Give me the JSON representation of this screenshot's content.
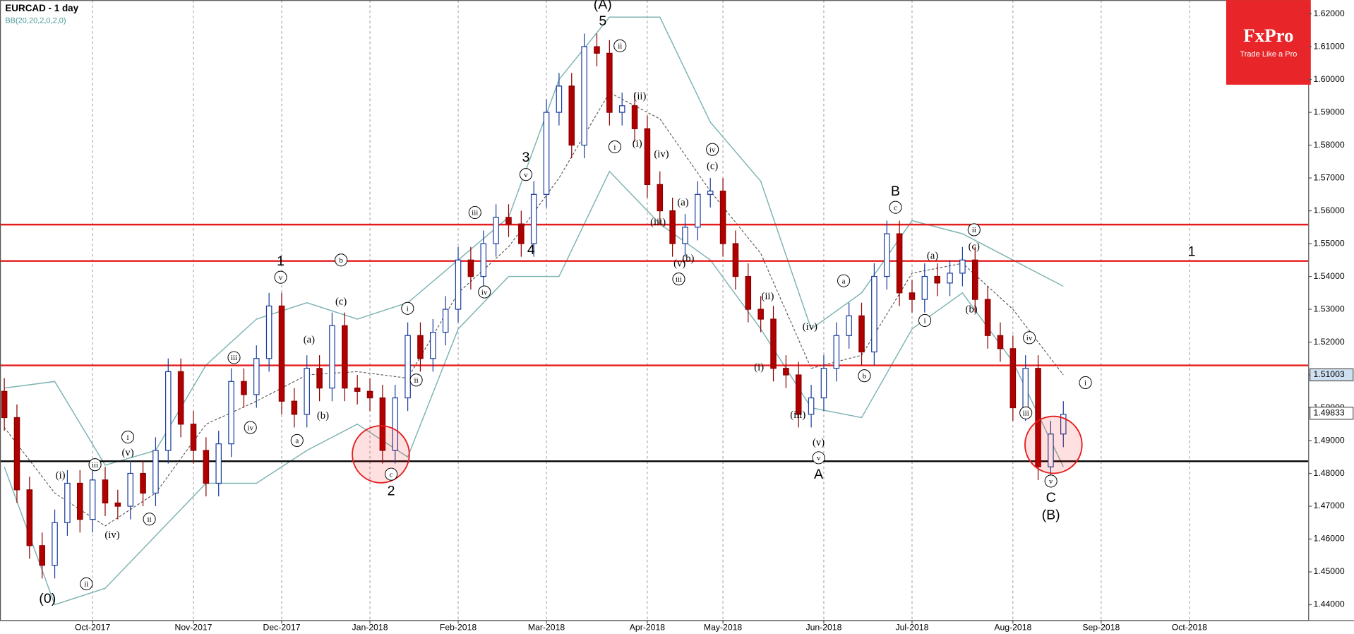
{
  "chart_data": {
    "type": "candlestick",
    "title": "EURCAD - 1 day",
    "subtitle": "BB(20,20,2,0,2,0)",
    "logo": {
      "brand": "FxPro",
      "tagline": "Trade Like a Pro"
    },
    "categories": [
      null,
      null,
      null,
      null,
      null,
      null,
      null,
      "Oct-2017",
      null,
      null,
      null,
      null,
      null,
      null,
      null,
      "Nov-2017",
      null,
      null,
      null,
      null,
      null,
      null,
      "Dec-2017",
      null,
      null,
      null,
      null,
      null,
      null,
      "Jan-2018",
      null,
      null,
      null,
      null,
      null,
      null,
      "Feb-2018",
      null,
      null,
      null,
      null,
      null,
      null,
      "Mar-2018",
      null,
      null,
      null,
      null,
      null,
      null,
      null,
      "Apr-2018",
      null,
      null,
      null,
      null,
      null,
      "May-2018",
      null,
      null,
      null,
      null,
      null,
      null,
      null,
      "Jun-2018",
      null,
      null,
      null,
      null,
      null,
      null,
      "Jul-2018",
      null,
      null,
      null,
      null,
      null,
      null,
      null,
      "Aug-2018",
      null,
      null,
      null,
      null,
      null,
      null,
      "Sep-2018",
      null,
      null,
      null,
      null,
      null,
      null,
      "Oct-2018"
    ],
    "open": [
      1.505,
      1.497,
      1.475,
      1.458,
      1.452,
      1.465,
      1.477,
      1.466,
      1.478,
      1.471,
      1.47,
      1.48,
      1.474,
      1.487,
      1.511,
      1.495,
      1.487,
      1.477,
      1.489,
      1.508,
      1.504,
      1.515,
      1.531,
      1.502,
      1.498,
      1.512,
      1.506,
      1.525,
      1.506,
      1.505,
      1.503,
      1.487,
      1.503,
      1.522,
      1.515,
      1.523,
      1.53,
      1.545,
      1.54,
      1.55,
      1.558,
      1.556,
      1.55,
      1.565,
      1.59,
      1.598,
      1.58,
      1.61,
      1.608,
      1.59,
      1.592,
      1.585,
      1.568,
      1.56,
      1.55,
      1.555,
      1.565,
      1.566,
      1.55,
      1.54,
      1.53,
      1.527,
      1.512,
      1.51,
      1.498,
      1.503,
      1.512,
      1.522,
      1.528,
      1.517,
      1.54,
      1.553,
      1.535,
      1.533,
      1.54,
      1.538,
      1.541,
      1.545,
      1.533,
      1.522,
      1.518,
      1.5,
      1.512,
      1.482,
      1.492,
      null,
      null,
      null,
      null,
      null,
      null,
      null,
      null,
      null,
      null
    ],
    "high": [
      1.509,
      1.501,
      1.479,
      1.462,
      1.469,
      1.481,
      1.481,
      1.482,
      1.482,
      1.475,
      1.484,
      1.484,
      1.491,
      1.515,
      1.515,
      1.499,
      1.491,
      1.493,
      1.512,
      1.512,
      1.519,
      1.535,
      1.535,
      1.506,
      1.516,
      1.516,
      1.529,
      1.529,
      1.51,
      1.509,
      1.507,
      1.507,
      1.526,
      1.526,
      1.527,
      1.534,
      1.549,
      1.549,
      1.554,
      1.562,
      1.562,
      1.56,
      1.569,
      1.594,
      1.602,
      1.602,
      1.614,
      1.614,
      1.612,
      1.596,
      1.596,
      1.589,
      1.572,
      1.564,
      1.559,
      1.569,
      1.57,
      1.57,
      1.554,
      1.544,
      1.534,
      1.531,
      1.516,
      1.514,
      1.507,
      1.516,
      1.526,
      1.532,
      1.532,
      1.544,
      1.557,
      1.557,
      1.539,
      1.544,
      1.544,
      1.545,
      1.549,
      1.549,
      1.537,
      1.526,
      1.522,
      1.516,
      1.516,
      1.496,
      1.502,
      null,
      null,
      null,
      null,
      null,
      null,
      null,
      null,
      null,
      null
    ],
    "low": [
      1.493,
      1.471,
      1.454,
      1.448,
      1.448,
      1.461,
      1.462,
      1.462,
      1.467,
      1.466,
      1.466,
      1.47,
      1.47,
      1.483,
      1.491,
      1.483,
      1.473,
      1.473,
      1.485,
      1.5,
      1.5,
      1.511,
      1.498,
      1.494,
      1.494,
      1.502,
      1.502,
      1.502,
      1.501,
      1.499,
      1.483,
      1.483,
      1.499,
      1.511,
      1.511,
      1.519,
      1.526,
      1.536,
      1.536,
      1.546,
      1.552,
      1.546,
      1.546,
      1.561,
      1.586,
      1.576,
      1.576,
      1.604,
      1.586,
      1.586,
      1.581,
      1.564,
      1.556,
      1.546,
      1.546,
      1.551,
      1.561,
      1.546,
      1.536,
      1.526,
      1.523,
      1.508,
      1.506,
      1.494,
      1.494,
      1.499,
      1.508,
      1.518,
      1.513,
      1.513,
      1.536,
      1.531,
      1.529,
      1.529,
      1.534,
      1.534,
      1.537,
      1.529,
      1.518,
      1.514,
      1.496,
      1.496,
      1.478,
      1.478,
      1.488,
      null,
      null,
      null,
      null,
      null,
      null,
      null,
      null,
      null,
      null
    ],
    "close": [
      1.497,
      1.475,
      1.458,
      1.452,
      1.465,
      1.477,
      1.466,
      1.478,
      1.471,
      1.47,
      1.48,
      1.474,
      1.487,
      1.511,
      1.495,
      1.487,
      1.477,
      1.489,
      1.508,
      1.504,
      1.515,
      1.531,
      1.502,
      1.498,
      1.512,
      1.506,
      1.525,
      1.506,
      1.505,
      1.503,
      1.487,
      1.503,
      1.522,
      1.515,
      1.523,
      1.53,
      1.545,
      1.54,
      1.55,
      1.558,
      1.556,
      1.55,
      1.565,
      1.59,
      1.598,
      1.58,
      1.61,
      1.608,
      1.59,
      1.592,
      1.585,
      1.568,
      1.56,
      1.55,
      1.555,
      1.565,
      1.566,
      1.55,
      1.54,
      1.53,
      1.527,
      1.512,
      1.51,
      1.498,
      1.503,
      1.512,
      1.522,
      1.528,
      1.517,
      1.54,
      1.553,
      1.535,
      1.533,
      1.54,
      1.538,
      1.541,
      1.545,
      1.533,
      1.522,
      1.518,
      1.5,
      1.512,
      1.482,
      1.492,
      1.498,
      null,
      null,
      null,
      null,
      null,
      null,
      null,
      null,
      null,
      null
    ],
    "bands": {
      "x": [
        0,
        4,
        8,
        12,
        16,
        20,
        24,
        28,
        32,
        36,
        40,
        44,
        48,
        52,
        56,
        60,
        64,
        68,
        72,
        76,
        80,
        84
      ],
      "upper": [
        1.506,
        1.508,
        1.4825,
        1.487,
        1.513,
        1.527,
        1.532,
        1.527,
        1.532,
        1.545,
        1.558,
        1.6,
        1.619,
        1.619,
        1.587,
        1.569,
        1.524,
        1.535,
        1.557,
        1.553,
        1.545,
        1.537
      ],
      "middle": [
        1.494,
        1.474,
        1.464,
        1.474,
        1.495,
        1.502,
        1.51,
        1.511,
        1.509,
        1.535,
        1.549,
        1.57,
        1.596,
        1.588,
        1.566,
        1.547,
        1.512,
        1.516,
        1.541,
        1.544,
        1.53,
        1.51
      ],
      "lower": [
        1.482,
        1.44,
        1.445,
        1.461,
        1.477,
        1.477,
        1.487,
        1.495,
        1.485,
        1.524,
        1.54,
        1.54,
        1.572,
        1.556,
        1.545,
        1.524,
        1.5,
        1.497,
        1.524,
        1.535,
        1.514,
        1.482
      ]
    },
    "levels_red": [
      1.5558,
      1.5447,
      1.5129
    ],
    "level_black": 1.4837,
    "price_tags": [
      1.51003,
      1.49833
    ],
    "ylim": [
      1.4353,
      1.6242
    ],
    "yticks": [
      {
        "value": 1.44,
        "label": "1.44000"
      },
      {
        "value": 1.45,
        "label": "1.45000"
      },
      {
        "value": 1.46,
        "label": "1.46000"
      },
      {
        "value": 1.47,
        "label": "1.47000"
      },
      {
        "value": 1.48,
        "label": "1.48000"
      },
      {
        "value": 1.49,
        "label": "1.49000"
      },
      {
        "value": 1.5,
        "label": "1.50000"
      },
      {
        "value": 1.51,
        "label": "1.51000"
      },
      {
        "value": 1.52,
        "label": "1.52000"
      },
      {
        "value": 1.53,
        "label": "1.53000"
      },
      {
        "value": 1.54,
        "label": "1.54000"
      },
      {
        "value": 1.55,
        "label": "1.55000"
      },
      {
        "value": 1.56,
        "label": "1.56000"
      },
      {
        "value": 1.57,
        "label": "1.57000"
      },
      {
        "value": 1.58,
        "label": "1.58000"
      },
      {
        "value": 1.59,
        "label": "1.59000"
      },
      {
        "value": 1.6,
        "label": "1.60000"
      },
      {
        "value": 1.61,
        "label": "1.61000"
      },
      {
        "value": 1.62,
        "label": "1.62000"
      }
    ],
    "annotations": [
      "(0)",
      "1",
      "2",
      "3",
      "4",
      "5",
      "(A)",
      "A",
      "B",
      "C",
      "(B)",
      "1",
      "v",
      "i",
      "iii",
      "ii",
      "ii",
      "iii",
      "iv",
      "a",
      "b",
      "c",
      "ii",
      "i",
      "iii",
      "v",
      "iv",
      "ii",
      "i",
      "iv",
      "iii",
      "i",
      "ii",
      "a",
      "b",
      "c",
      "iii",
      "iv",
      "v",
      "i",
      "v",
      "(i)",
      "(v)",
      "(iv)",
      "(a)",
      "(c)",
      "(b)",
      "(ii)",
      "(i)",
      "(iv)",
      "(c)",
      "(a)",
      "(b)",
      "(v)",
      "(iii)",
      "(ii)",
      "(iv)",
      "(i)",
      "(iii)",
      "(v)",
      "(a)",
      "(b)",
      "(c)"
    ]
  }
}
